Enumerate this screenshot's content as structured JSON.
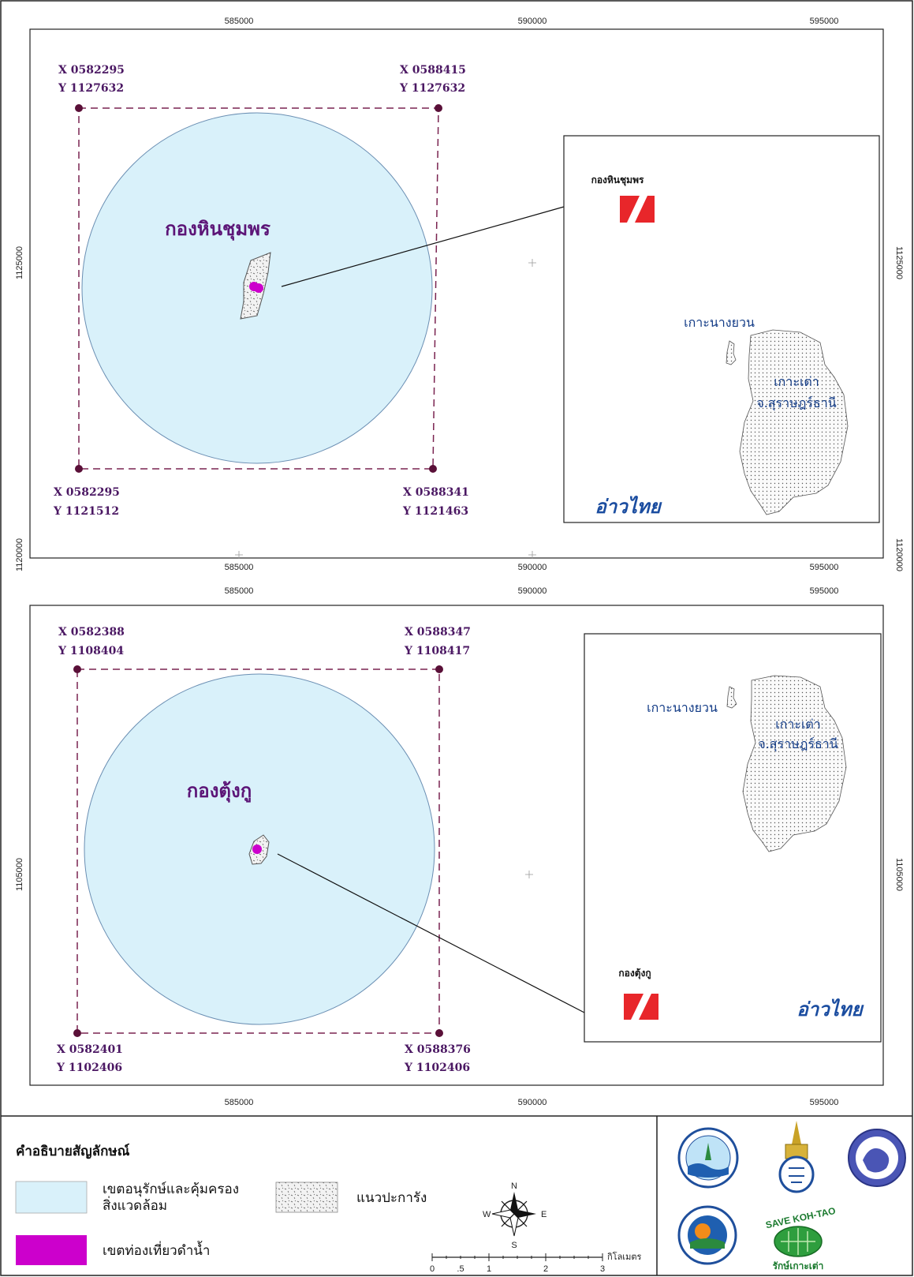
{
  "grid": {
    "x_ticks": [
      "585000",
      "590000",
      "595000"
    ],
    "map1_y_ticks": [
      "1125000",
      "1120000"
    ],
    "map2_y_ticks": [
      "1105000"
    ]
  },
  "map1": {
    "site_name": "กองหินชุมพร",
    "corners": {
      "top_left": [
        "X 0582295",
        "Y 1127632"
      ],
      "top_right": [
        "X 0588415",
        "Y 1127632"
      ],
      "bottom_left": [
        "X 0582295",
        "Y 1121512"
      ],
      "bottom_right": [
        "X 0588341",
        "Y 1121463"
      ]
    },
    "inset": {
      "site_label": "กองหินชุมพร",
      "island_small": "เกาะนางยวน",
      "island_main": "เกาะเต่า",
      "province": "จ.สุราษฎร์ธานี",
      "bay": "อ่าวไทย"
    }
  },
  "map2": {
    "site_name": "กองตุ้งกู",
    "corners": {
      "top_left": [
        "X 0582388",
        "Y 1108404"
      ],
      "top_right": [
        "X 0588347",
        "Y 1108417"
      ],
      "bottom_left": [
        "X 0582401",
        "Y 1102406"
      ],
      "bottom_right": [
        "X 0588376",
        "Y 1102406"
      ]
    },
    "inset": {
      "site_label": "กองตุ้งกู",
      "island_small": "เกาะนางยวน",
      "island_main": "เกาะเต่า",
      "province": "จ.สุราษฎร์ธานี",
      "bay": "อ่าวไทย"
    }
  },
  "legend": {
    "title": "คำอธิบายสัญลักษณ์",
    "conservation_zone_line1": "เขตอนุรักษ์และคุ้มครอง",
    "conservation_zone_line2": "สิ่งแวดล้อม",
    "coral_reef": "แนวปะการัง",
    "dive_zone": "เขตท่องเที่ยวดำน้ำ",
    "colors": {
      "conservation_zone": "#d9f1fa",
      "dive_zone": "#cc00cc",
      "boundary": "#7a2350",
      "bay_text": "#1b4da0"
    }
  },
  "compass": {
    "n": "N",
    "s": "S",
    "e": "E",
    "w": "W"
  },
  "scale_bar": {
    "ticks": [
      "0",
      ".5",
      "1",
      "2",
      "3"
    ],
    "unit": "กิโลเมตร"
  },
  "logos": {
    "icons": [
      "dmcr-seal-icon",
      "royal-emblem-icon",
      "province-seal-icon",
      "koh-tao-municipality-icon",
      "save-koh-tao-icon"
    ],
    "save_text": "SAVE KOH-TAO",
    "save_sub": "รักษ์เกาะเต่า"
  }
}
